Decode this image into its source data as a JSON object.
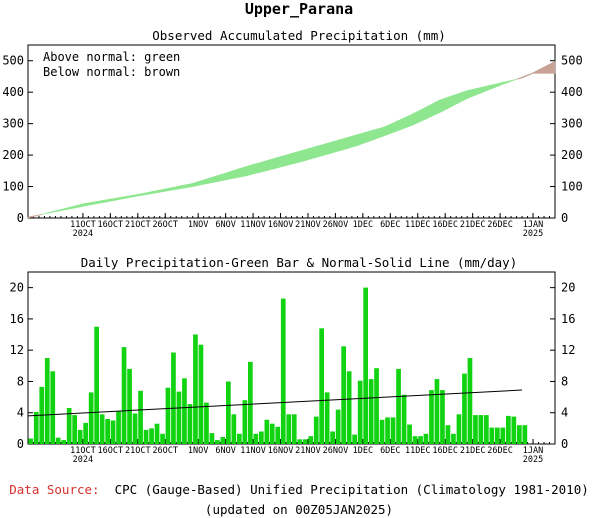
{
  "page_title": "Upper_Parana",
  "footer": {
    "source_label": "Data Source:",
    "source_text": "CPC (Gauge-Based) Unified Precipitation (Climatology 1981-2010)",
    "updated": "(updated on 00Z05JAN2025)"
  },
  "colors": {
    "above": "#8ee68e",
    "below": "#c8a296",
    "bar": "#11d311",
    "normal_line": "#000000",
    "source_label": "#d8302c"
  },
  "chart_data": [
    {
      "type": "area",
      "title": "Observed Accumulated Precipitation (mm)",
      "legend": [
        "Above normal: green",
        "Below normal: brown"
      ],
      "legend_placement": "top-left",
      "ylim": [
        0,
        550
      ],
      "yticks": [
        0,
        100,
        200,
        300,
        400,
        500
      ],
      "x_days": 96,
      "x_start": "2024-10-01",
      "xtick_labels": [
        {
          "day": 10,
          "label": "11OCT",
          "sub": "2024"
        },
        {
          "day": 15,
          "label": "16OCT"
        },
        {
          "day": 20,
          "label": "21OCT"
        },
        {
          "day": 25,
          "label": "26OCT"
        },
        {
          "day": 31,
          "label": "1NOV"
        },
        {
          "day": 36,
          "label": "6NOV"
        },
        {
          "day": 41,
          "label": "11NOV"
        },
        {
          "day": 46,
          "label": "16NOV"
        },
        {
          "day": 51,
          "label": "21NOV"
        },
        {
          "day": 56,
          "label": "26NOV"
        },
        {
          "day": 61,
          "label": "1DEC"
        },
        {
          "day": 66,
          "label": "6DEC"
        },
        {
          "day": 71,
          "label": "11DEC"
        },
        {
          "day": 76,
          "label": "16DEC"
        },
        {
          "day": 81,
          "label": "21DEC"
        },
        {
          "day": 86,
          "label": "26DEC"
        },
        {
          "day": 92,
          "label": "1JAN",
          "sub": "2025"
        }
      ],
      "series": [
        {
          "name": "Observed",
          "x": [
            0,
            10,
            20,
            30,
            40,
            50,
            60,
            65,
            70,
            75,
            80,
            85,
            90,
            92,
            96
          ],
          "values": [
            0,
            45,
            75,
            110,
            165,
            215,
            265,
            290,
            330,
            375,
            405,
            425,
            445,
            460,
            460
          ]
        },
        {
          "name": "Normal",
          "x": [
            0,
            10,
            20,
            30,
            40,
            50,
            60,
            65,
            70,
            75,
            80,
            85,
            90,
            92,
            96
          ],
          "values": [
            3,
            37,
            70,
            100,
            135,
            180,
            230,
            262,
            295,
            335,
            380,
            415,
            448,
            462,
            498
          ]
        }
      ]
    },
    {
      "type": "bar",
      "title": "Daily Precipitation-Green Bar & Normal-Solid Line (mm/day)",
      "ylim": [
        0,
        22
      ],
      "yticks": [
        0,
        4,
        8,
        12,
        16,
        20
      ],
      "x_days": 96,
      "series": [
        {
          "name": "Daily Precipitation",
          "values": [
            0.7,
            4.1,
            7.3,
            11.0,
            9.3,
            0.8,
            0.5,
            4.6,
            3.7,
            1.8,
            2.7,
            6.6,
            15.0,
            3.8,
            3.2,
            3.0,
            4.2,
            12.4,
            9.6,
            3.9,
            6.8,
            1.8,
            2.0,
            2.6,
            1.3,
            7.2,
            11.7,
            6.7,
            8.4,
            5.1,
            14.0,
            12.7,
            5.3,
            1.4,
            0.5,
            0.9,
            8.0,
            3.8,
            1.3,
            5.6,
            10.5,
            1.3,
            1.6,
            3.1,
            2.6,
            2.2,
            18.6,
            3.8,
            3.8,
            0.6,
            0.6,
            1.0,
            3.5,
            14.8,
            6.6,
            1.6,
            4.4,
            12.5,
            9.3,
            1.2,
            8.1,
            20.0,
            8.3,
            9.7,
            3.1,
            3.4,
            3.4,
            9.6,
            6.3,
            2.5,
            1.0,
            1.0,
            1.3,
            6.9,
            8.3,
            6.9,
            2.4,
            1.3,
            3.8,
            9.0,
            11.0,
            3.7,
            3.7,
            3.7,
            2.1,
            2.1,
            2.1,
            3.6,
            3.5,
            2.4,
            2.4
          ]
        },
        {
          "name": "Normal",
          "x": [
            0,
            90
          ],
          "values": [
            3.6,
            6.9
          ]
        }
      ]
    }
  ]
}
